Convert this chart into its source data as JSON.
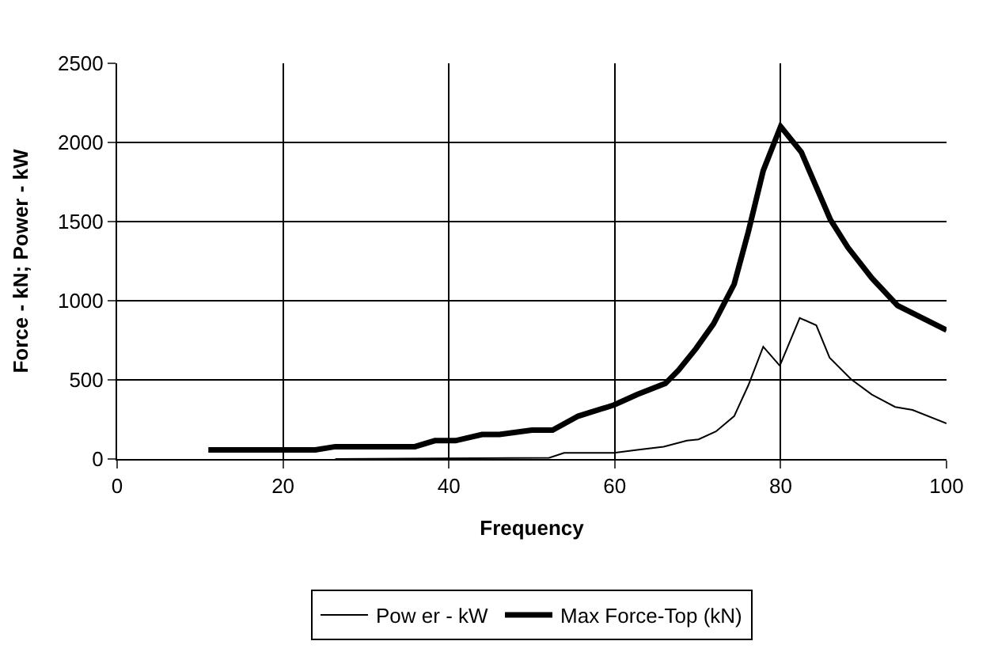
{
  "chart_data": {
    "type": "line",
    "xlabel": "Frequency",
    "ylabel": "Force - kN; Power - kW",
    "xlim": [
      0,
      100
    ],
    "xticks": [
      0,
      20,
      40,
      60,
      80,
      100
    ],
    "ylim": [
      0,
      2500
    ],
    "yticks": [
      0,
      500,
      1000,
      1500,
      2000,
      2500
    ],
    "grid": true,
    "legend": "bottom",
    "marker": "none",
    "line_style": "solid",
    "series": [
      {
        "name": "Pow er - kW",
        "color": "#000000",
        "x": [
          26.3,
          52.1,
          53.9,
          59.9,
          62.7,
          65.9,
          68.7,
          70.1,
          72.2,
          74.4,
          76.1,
          77.9,
          79.9,
          82.3,
          84.3,
          85.9,
          88.5,
          91,
          93.8,
          95.9,
          100
        ],
        "values": [
          0,
          8,
          39,
          39,
          58,
          78,
          116,
          124,
          174,
          271,
          465,
          709,
          589,
          891,
          845,
          640,
          504,
          407,
          329,
          310,
          225
        ]
      },
      {
        "name": "Max Force-Top (kN)",
        "color": "#000000",
        "x": [
          11,
          23.9,
          26.3,
          35.9,
          38.3,
          40.8,
          44,
          46.1,
          50,
          52.5,
          55.6,
          59.9,
          62.7,
          66.1,
          67.7,
          69.8,
          71.9,
          74.4,
          76.1,
          77.9,
          80,
          82.5,
          86,
          88.1,
          91,
          94.1,
          100
        ],
        "values": [
          58,
          58,
          78,
          78,
          116,
          116,
          155,
          155,
          182,
          182,
          271,
          341,
          407,
          477,
          562,
          698,
          853,
          1105,
          1434,
          1822,
          2101,
          1938,
          1512,
          1337,
          1143,
          969,
          814
        ]
      }
    ]
  }
}
